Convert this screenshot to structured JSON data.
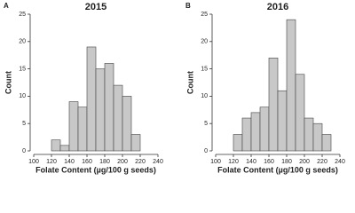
{
  "chart_data": [
    {
      "type": "histogram",
      "panel": "A",
      "title": "2015",
      "xlabel": "Folate Content (µg/100 g seeds)",
      "ylabel": "Count",
      "bins": [
        120,
        130,
        140,
        150,
        160,
        170,
        180,
        190,
        200,
        210,
        220
      ],
      "counts": [
        2,
        1,
        9,
        8,
        19,
        15,
        16,
        12,
        10,
        3
      ],
      "color": "#c8c8c8",
      "xlim": [
        100,
        240
      ],
      "xticks": [
        100,
        120,
        140,
        160,
        180,
        200,
        220,
        240
      ],
      "ylim": [
        0,
        25
      ],
      "yticks": [
        0,
        5,
        10,
        15,
        20,
        25
      ]
    },
    {
      "type": "histogram",
      "panel": "B",
      "title": "2016",
      "xlabel": "Folate Content (µg/100 g seeds)",
      "ylabel": "Count",
      "bins": [
        120,
        130,
        140,
        150,
        160,
        170,
        180,
        190,
        200,
        210,
        220,
        230
      ],
      "counts": [
        3,
        6,
        7,
        8,
        17,
        11,
        24,
        14,
        6,
        5,
        3
      ],
      "color": "#c8c8c8",
      "xlim": [
        100,
        240
      ],
      "xticks": [
        100,
        120,
        140,
        160,
        180,
        200,
        220,
        240
      ],
      "ylim": [
        0,
        25
      ],
      "yticks": [
        0,
        5,
        10,
        15,
        20,
        25
      ]
    }
  ]
}
